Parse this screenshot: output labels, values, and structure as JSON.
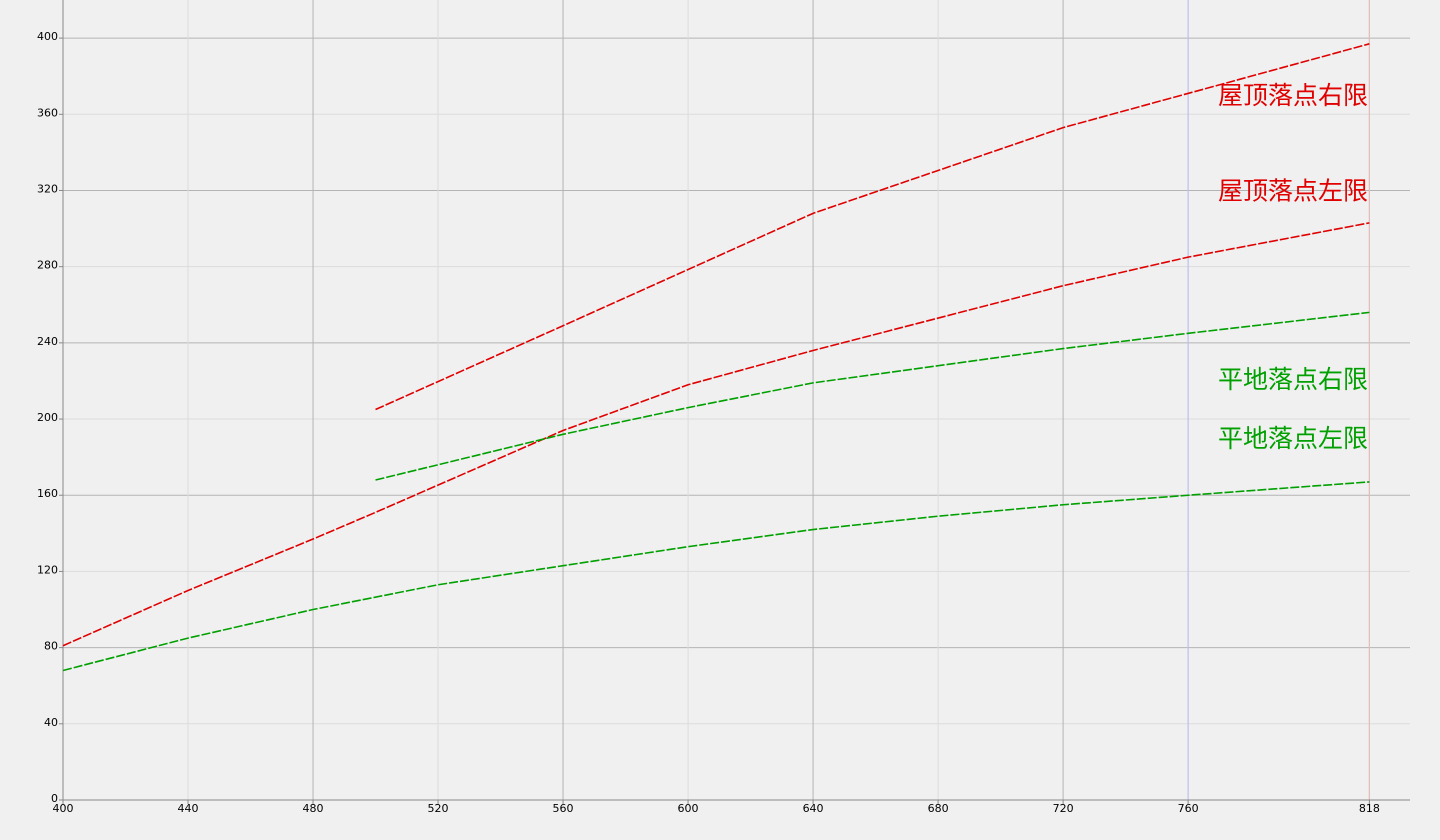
{
  "chart_data": {
    "type": "line",
    "xlim": [
      400,
      831
    ],
    "ylim": [
      0,
      420
    ],
    "xticks": [
      400,
      440,
      480,
      520,
      560,
      600,
      640,
      680,
      720,
      760,
      818
    ],
    "yticks": [
      0,
      40,
      80,
      120,
      160,
      200,
      240,
      280,
      320,
      360,
      400
    ],
    "grid": true,
    "vlines": [
      {
        "x": 760,
        "color": "#b8b8f0"
      },
      {
        "x": 818,
        "color": "#f0b8b8"
      }
    ],
    "series": [
      {
        "name": "屋顶落点右限",
        "color": "#e00000",
        "x": [
          500,
          560,
          640,
          720,
          818
        ],
        "values": [
          205,
          249,
          308,
          353,
          397
        ]
      },
      {
        "name": "屋顶落点左限",
        "color": "#e00000",
        "x": [
          400,
          440,
          480,
          500,
          560,
          600,
          640,
          720,
          760,
          818
        ],
        "values": [
          81,
          110,
          137,
          151,
          194,
          218,
          236,
          270,
          285,
          303
        ]
      },
      {
        "name": "平地落点右限",
        "color": "#00a000",
        "x": [
          500,
          560,
          600,
          640,
          720,
          760,
          818
        ],
        "values": [
          168,
          192,
          206,
          219,
          237,
          245,
          256
        ]
      },
      {
        "name": "平地落点左限",
        "color": "#00a000",
        "x": [
          400,
          440,
          480,
          520,
          560,
          600,
          640,
          680,
          720,
          760,
          818
        ],
        "values": [
          68,
          85,
          100,
          113,
          123,
          133,
          142,
          149,
          155,
          160,
          167
        ]
      }
    ]
  }
}
